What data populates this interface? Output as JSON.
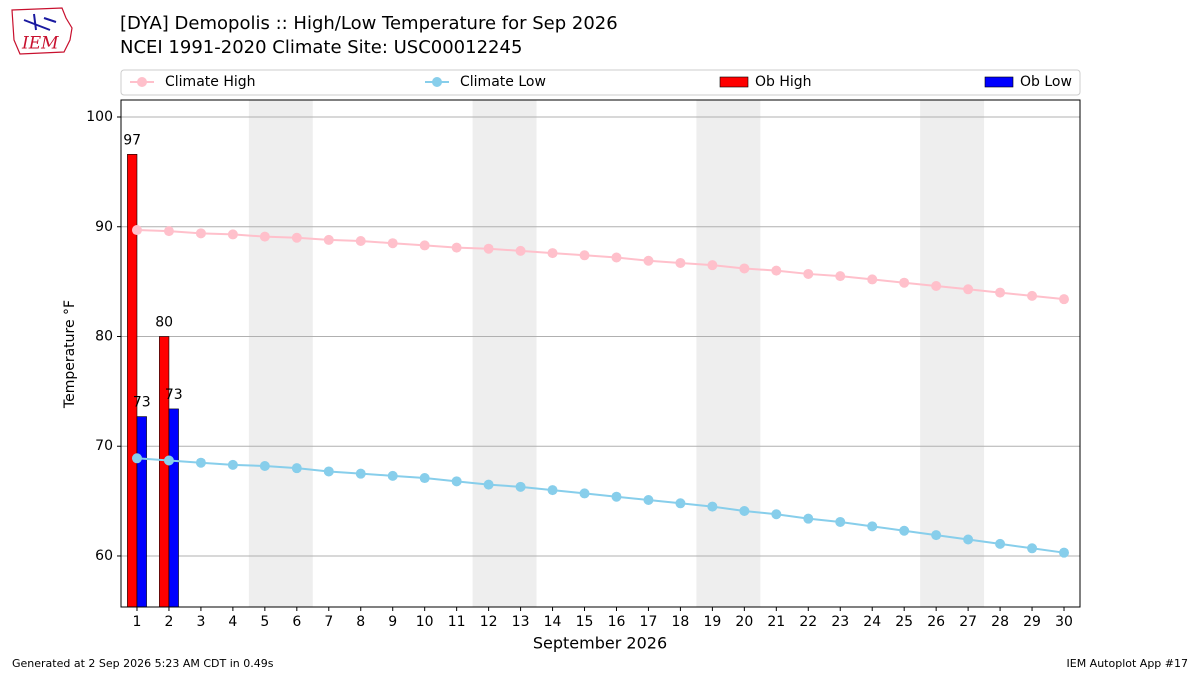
{
  "logo_text": "IEM",
  "footer_left": "Generated at 2 Sep 2026 5:23 AM CDT in 0.49s",
  "footer_right": "IEM Autoplot App #17",
  "chart_data": {
    "type": "bar_line",
    "title": "[DYA] Demopolis :: High/Low Temperature for Sep 2026",
    "subtitle": "NCEI 1991-2020 Climate Site: USC00012245",
    "xlabel": "September 2026",
    "ylabel": "Temperature °F",
    "x": [
      1,
      2,
      3,
      4,
      5,
      6,
      7,
      8,
      9,
      10,
      11,
      12,
      13,
      14,
      15,
      16,
      17,
      18,
      19,
      20,
      21,
      22,
      23,
      24,
      25,
      26,
      27,
      28,
      29,
      30
    ],
    "xlim": [
      0.5,
      30.5
    ],
    "xticks": [
      1,
      2,
      3,
      4,
      5,
      6,
      7,
      8,
      9,
      10,
      11,
      12,
      13,
      14,
      15,
      16,
      17,
      18,
      19,
      20,
      21,
      22,
      23,
      24,
      25,
      26,
      27,
      28,
      29,
      30
    ],
    "ylim": [
      55.35,
      101.55
    ],
    "yticks": [
      60,
      70,
      80,
      90,
      100
    ],
    "grid": true,
    "weekend_spans": [
      [
        4.5,
        6.5
      ],
      [
        11.5,
        13.5
      ],
      [
        18.5,
        20.5
      ],
      [
        25.5,
        27.5
      ]
    ],
    "series": [
      {
        "name": "Climate High",
        "kind": "line",
        "color": "#ffc0cb",
        "values": [
          89.7,
          89.6,
          89.4,
          89.3,
          89.1,
          89.0,
          88.8,
          88.7,
          88.5,
          88.3,
          88.1,
          88.0,
          87.8,
          87.6,
          87.4,
          87.2,
          86.9,
          86.7,
          86.5,
          86.2,
          86.0,
          85.7,
          85.5,
          85.2,
          84.9,
          84.6,
          84.3,
          84.0,
          83.7,
          83.4
        ]
      },
      {
        "name": "Climate Low",
        "kind": "line",
        "color": "#87ceeb",
        "values": [
          68.9,
          68.7,
          68.5,
          68.3,
          68.2,
          68.0,
          67.7,
          67.5,
          67.3,
          67.1,
          66.8,
          66.5,
          66.3,
          66.0,
          65.7,
          65.4,
          65.1,
          64.8,
          64.5,
          64.1,
          63.8,
          63.4,
          63.1,
          62.7,
          62.3,
          61.9,
          61.5,
          61.1,
          60.7,
          60.3
        ]
      },
      {
        "name": "Ob High",
        "kind": "bar",
        "color": "#ff0000",
        "values": [
          96.6,
          80,
          null,
          null,
          null,
          null,
          null,
          null,
          null,
          null,
          null,
          null,
          null,
          null,
          null,
          null,
          null,
          null,
          null,
          null,
          null,
          null,
          null,
          null,
          null,
          null,
          null,
          null,
          null,
          null
        ],
        "value_labels": [
          "97",
          "80",
          null,
          null,
          null,
          null,
          null,
          null,
          null,
          null,
          null,
          null,
          null,
          null,
          null,
          null,
          null,
          null,
          null,
          null,
          null,
          null,
          null,
          null,
          null,
          null,
          null,
          null,
          null,
          null
        ]
      },
      {
        "name": "Ob Low",
        "kind": "bar",
        "color": "#0000ff",
        "values": [
          72.7,
          73.4,
          null,
          null,
          null,
          null,
          null,
          null,
          null,
          null,
          null,
          null,
          null,
          null,
          null,
          null,
          null,
          null,
          null,
          null,
          null,
          null,
          null,
          null,
          null,
          null,
          null,
          null,
          null,
          null
        ],
        "value_labels": [
          "73",
          "73",
          null,
          null,
          null,
          null,
          null,
          null,
          null,
          null,
          null,
          null,
          null,
          null,
          null,
          null,
          null,
          null,
          null,
          null,
          null,
          null,
          null,
          null,
          null,
          null,
          null,
          null,
          null,
          null
        ]
      }
    ]
  }
}
